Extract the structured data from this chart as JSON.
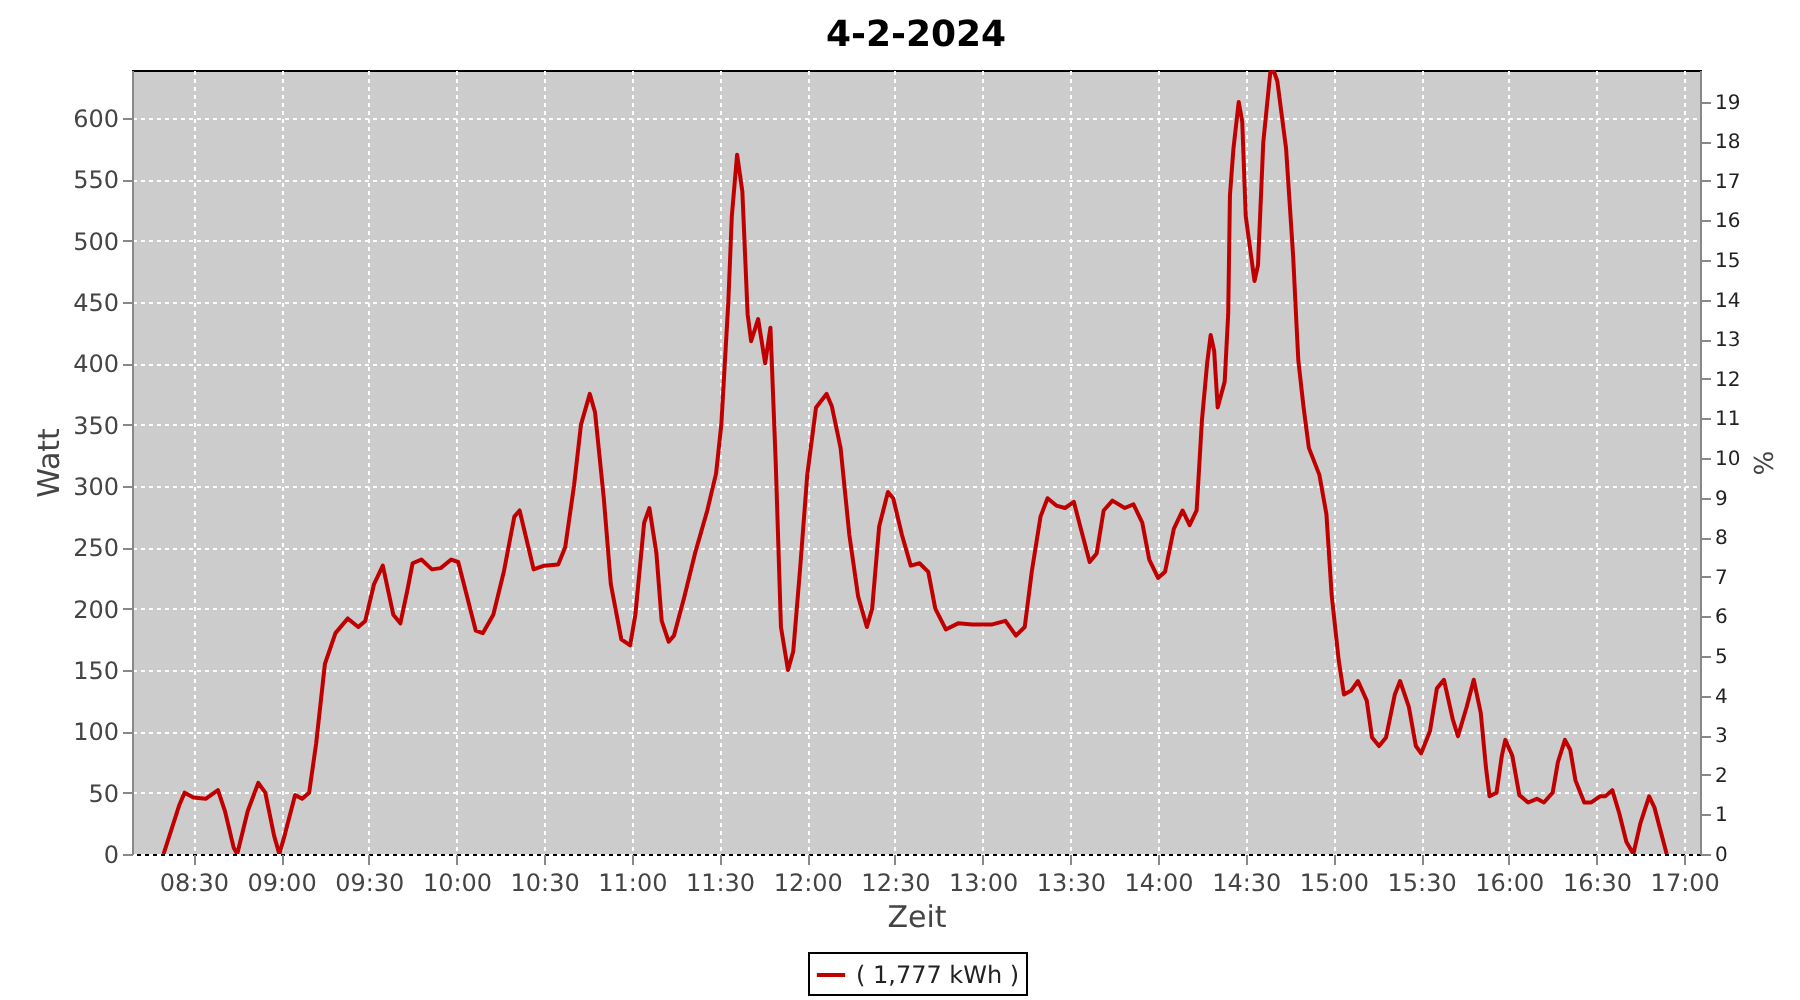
{
  "chart_data": {
    "type": "line",
    "title": "4-2-2024",
    "xlabel": "Zeit",
    "ylabel": "Watt",
    "y2label": "%",
    "xlim": [
      8.15,
      17.09
    ],
    "xticks": [
      {
        "value": 8.5,
        "label": "08:30"
      },
      {
        "value": 9,
        "label": "09:00"
      },
      {
        "value": 9.5,
        "label": "09:30"
      },
      {
        "value": 10,
        "label": "10:00"
      },
      {
        "value": 10.5,
        "label": "10:30"
      },
      {
        "value": 11,
        "label": "11:00"
      },
      {
        "value": 11.5,
        "label": "11:30"
      },
      {
        "value": 12,
        "label": "12:00"
      },
      {
        "value": 12.5,
        "label": "12:30"
      },
      {
        "value": 13,
        "label": "13:00"
      },
      {
        "value": 13.5,
        "label": "13:30"
      },
      {
        "value": 14,
        "label": "14:00"
      },
      {
        "value": 14.5,
        "label": "14:30"
      },
      {
        "value": 15,
        "label": "15:00"
      },
      {
        "value": 15.5,
        "label": "15:30"
      },
      {
        "value": 16,
        "label": "16:00"
      },
      {
        "value": 16.5,
        "label": "16:30"
      },
      {
        "value": 17,
        "label": "17:00"
      }
    ],
    "ylim": [
      0,
      639
    ],
    "yticks": [
      0,
      50,
      100,
      150,
      200,
      250,
      300,
      350,
      400,
      450,
      500,
      550,
      600
    ],
    "y2lim": [
      0,
      19.8
    ],
    "y2ticks": [
      0,
      1,
      2,
      3,
      4,
      5,
      6,
      7,
      8,
      9,
      10,
      11,
      12,
      13,
      14,
      15,
      16,
      17,
      18,
      19
    ],
    "grid": true,
    "legend": "bottom",
    "marker": "none",
    "line_style": "solid",
    "series": [
      {
        "name": "( 1,777 kWh )",
        "color": "#c00000",
        "x": [
          8.33,
          8.42,
          8.45,
          8.5,
          8.57,
          8.64,
          8.68,
          8.73,
          8.75,
          8.81,
          8.87,
          8.91,
          8.96,
          8.99,
          9.02,
          9.08,
          9.12,
          9.16,
          9.2,
          9.25,
          9.31,
          9.38,
          9.44,
          9.48,
          9.53,
          9.58,
          9.64,
          9.68,
          9.72,
          9.75,
          9.8,
          9.86,
          9.91,
          9.97,
          10.01,
          10.06,
          10.11,
          10.15,
          10.21,
          10.27,
          10.33,
          10.36,
          10.41,
          10.44,
          10.5,
          10.58,
          10.62,
          10.67,
          10.71,
          10.76,
          10.79,
          10.84,
          10.88,
          10.94,
          10.99,
          11.02,
          11.07,
          11.1,
          11.14,
          11.17,
          11.21,
          11.24,
          11.3,
          11.36,
          11.43,
          11.48,
          11.51,
          11.55,
          11.57,
          11.6,
          11.63,
          11.66,
          11.68,
          11.72,
          11.76,
          11.79,
          11.82,
          11.85,
          11.89,
          11.92,
          11.96,
          12,
          12.05,
          12.11,
          12.14,
          12.19,
          12.24,
          12.29,
          12.34,
          12.37,
          12.41,
          12.46,
          12.49,
          12.54,
          12.59,
          12.64,
          12.69,
          12.73,
          12.79,
          12.86,
          12.94,
          13.05,
          13.13,
          13.19,
          13.24,
          13.28,
          13.33,
          13.37,
          13.42,
          13.47,
          13.52,
          13.56,
          13.61,
          13.65,
          13.69,
          13.74,
          13.81,
          13.86,
          13.91,
          13.95,
          14,
          14.04,
          14.09,
          14.14,
          14.18,
          14.22,
          14.25,
          14.28,
          14.3,
          14.32,
          14.34,
          14.38,
          14.4,
          14.41,
          14.43,
          14.46,
          14.48,
          14.5,
          14.53,
          14.55,
          14.57,
          14.6,
          14.64,
          14.66,
          14.68,
          14.7,
          14.73,
          14.77,
          14.79,
          14.8,
          14.83,
          14.86,
          14.92,
          14.96,
          14.99,
          15.03,
          15.06,
          15.1,
          15.14,
          15.19,
          15.22,
          15.26,
          15.3,
          15.35,
          15.38,
          15.43,
          15.47,
          15.5,
          15.55,
          15.59,
          15.63,
          15.68,
          15.71,
          15.76,
          15.8,
          15.84,
          15.87,
          15.89,
          15.93,
          15.96,
          15.98,
          16.02,
          16.06,
          16.11,
          16.16,
          16.2,
          16.25,
          16.28,
          16.32,
          16.35,
          16.38,
          16.43,
          16.47,
          16.52,
          16.55,
          16.59,
          16.63,
          16.67,
          16.71,
          16.75,
          16.8,
          16.83,
          16.9
        ],
        "values": [
          0,
          40,
          50,
          46,
          45,
          52,
          35,
          5,
          0,
          35,
          58,
          50,
          15,
          0,
          15,
          48,
          45,
          50,
          90,
          155,
          180,
          192,
          185,
          190,
          220,
          235,
          195,
          188,
          215,
          237,
          240,
          232,
          233,
          240,
          238,
          210,
          182,
          180,
          195,
          230,
          275,
          280,
          250,
          232,
          235,
          236,
          250,
          300,
          350,
          375,
          360,
          290,
          220,
          175,
          170,
          195,
          270,
          282,
          245,
          190,
          173,
          178,
          210,
          245,
          280,
          310,
          350,
          450,
          520,
          570,
          540,
          440,
          418,
          436,
          400,
          429,
          320,
          185,
          150,
          165,
          234,
          309,
          364,
          375,
          365,
          331,
          260,
          210,
          185,
          200,
          267,
          295,
          290,
          260,
          235,
          237,
          230,
          200,
          183,
          188,
          187,
          187,
          190,
          178,
          185,
          230,
          275,
          290,
          284,
          282,
          287,
          265,
          238,
          245,
          280,
          288,
          282,
          285,
          270,
          240,
          225,
          230,
          265,
          280,
          268,
          280,
          353,
          400,
          423,
          410,
          364,
          385,
          440,
          537,
          575,
          613,
          597,
          520,
          488,
          467,
          480,
          580,
          637,
          638,
          630,
          608,
          575,
          488,
          430,
          402,
          364,
          331,
          309,
          277,
          211,
          158,
          130,
          133,
          141,
          125,
          95,
          88,
          95,
          130,
          141,
          120,
          88,
          82,
          100,
          135,
          142,
          110,
          96,
          120,
          142,
          115,
          70,
          47,
          50,
          80,
          93,
          80,
          48,
          42,
          45,
          42,
          50,
          75,
          93,
          85,
          60,
          42,
          42,
          47,
          47,
          52,
          33,
          10,
          0,
          25,
          47,
          38,
          0
        ]
      }
    ]
  }
}
